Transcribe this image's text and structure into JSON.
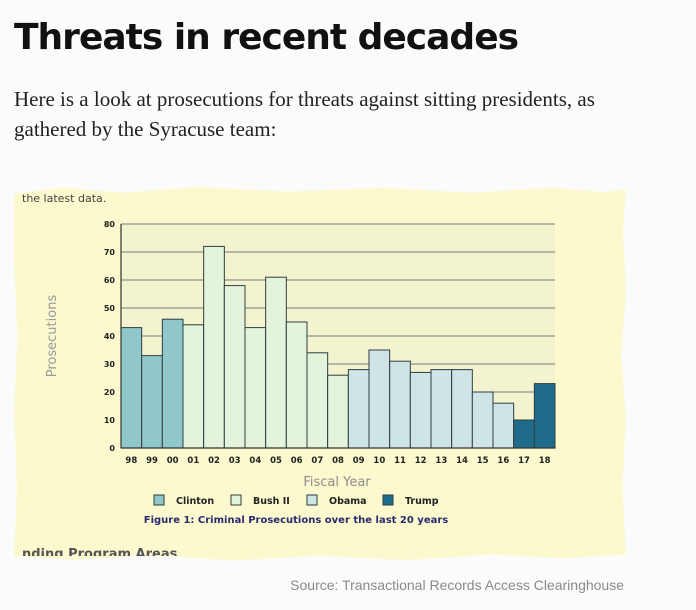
{
  "article": {
    "headline": "Threats in recent decades",
    "intro": "Here is a look at prosecutions for threats against sitting presidents, as gathered by the Syracuse team:",
    "clipping_top_text": "the latest data.",
    "clipping_bottom_text": "nding Program Areas",
    "source": "Source: Transactional Records Access Clearinghouse"
  },
  "colors": {
    "paper": "#fbf9cd",
    "plot_bg": "#f3f3d0",
    "grid": "#7a7a7a",
    "bar_outline": "#2f3e3e",
    "clinton": "#8fc7cb",
    "bush": "#e4f3dc",
    "obama": "#cfe4e6",
    "trump": "#1f6b8b",
    "text": "#222222",
    "label": "#9a9a9a"
  },
  "chart_data": {
    "type": "bar",
    "categories": [
      "98",
      "99",
      "00",
      "01",
      "02",
      "03",
      "04",
      "05",
      "06",
      "07",
      "08",
      "09",
      "10",
      "11",
      "12",
      "13",
      "14",
      "15",
      "16",
      "17",
      "18"
    ],
    "values": [
      43,
      33,
      46,
      44,
      72,
      58,
      43,
      61,
      45,
      34,
      26,
      28,
      35,
      31,
      27,
      28,
      28,
      20,
      16,
      10,
      23
    ],
    "groups": [
      "Clinton",
      "Clinton",
      "Clinton",
      "Bush II",
      "Bush II",
      "Bush II",
      "Bush II",
      "Bush II",
      "Bush II",
      "Bush II",
      "Bush II",
      "Obama",
      "Obama",
      "Obama",
      "Obama",
      "Obama",
      "Obama",
      "Obama",
      "Obama",
      "Trump",
      "Trump"
    ],
    "legend": [
      "Clinton",
      "Bush II",
      "Obama",
      "Trump"
    ],
    "title": "Figure 1: Criminal Prosecutions over the last 20 years",
    "xlabel": "Fiscal Year",
    "ylabel": "Prosecutions",
    "ylim": [
      0,
      80
    ],
    "yticks": [
      0,
      10,
      20,
      30,
      40,
      50,
      60,
      70,
      80
    ],
    "grid": true,
    "legend_position": "bottom"
  }
}
